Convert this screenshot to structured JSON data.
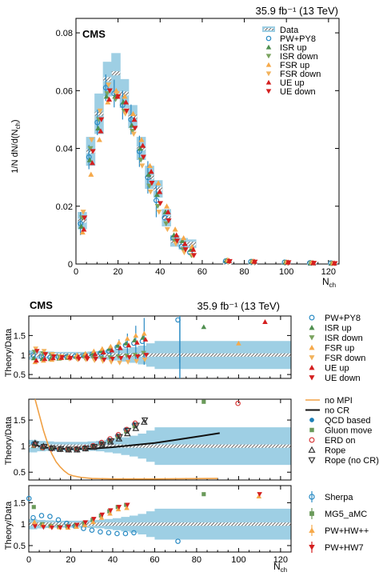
{
  "colors": {
    "band": "#9ecfe4",
    "data_line": "#2f6f96",
    "pw_py8": "#2a8bc4",
    "isr_up": "#4f8f4f",
    "isr_down": "#7aa35f",
    "fsr_up": "#f6a94a",
    "fsr_down": "#f2b25c",
    "ue_up": "#d41f1f",
    "ue_down": "#d41f1f",
    "no_mpi": "#f0a044",
    "no_cr": "#111111",
    "qcd": "#1e7fb8",
    "gluon": "#6a9a5a",
    "erd": "#d83a3a",
    "rope": "#333333",
    "sherpa": "#2a8bc4",
    "mg5": "#6a9a5a",
    "pwhwpp": "#f6a94a",
    "pwhw7": "#d41f1f"
  },
  "chart_data": [
    {
      "type": "line",
      "name": "main",
      "cms_label": "CMS",
      "lumi_label": "35.9 fb⁻¹ (13 TeV)",
      "xlabel": "N",
      "xlabel_sub": "ch",
      "ylabel": "1/N dN/d(N",
      "ylabel_sub": "ch",
      "ylabel_close": ")",
      "xlim": [
        0,
        125
      ],
      "ylim": [
        0,
        0.085
      ],
      "xticks": [
        "0",
        "20",
        "40",
        "60",
        "80",
        "100",
        "120"
      ],
      "yticks": [
        "0",
        "0.02",
        "0.04",
        "0.06",
        "0.08"
      ],
      "x": [
        3,
        7,
        11,
        15,
        19,
        23,
        27,
        31,
        35,
        39,
        43,
        47,
        51,
        55,
        72,
        84,
        100,
        112,
        122
      ],
      "data": [
        0.015,
        0.039,
        0.052,
        0.064,
        0.066,
        0.059,
        0.051,
        0.04,
        0.03,
        0.026,
        0.016,
        0.008,
        0.007,
        0.007,
        0.0005,
        0.0003,
        0.0002,
        0.0001,
        0.0001
      ],
      "band_halfwidth": [
        0.003,
        0.005,
        0.007,
        0.006,
        0.007,
        0.005,
        0.004,
        0.004,
        0.004,
        0.003,
        0.003,
        0.002,
        0.002,
        0.0015,
        0.0005,
        0.0004,
        0.0003,
        0.0002,
        0.0002
      ],
      "series": [
        {
          "name": "PW+PY8",
          "marker": "circle-open",
          "color_key": "pw_py8",
          "values": [
            0.014,
            0.037,
            0.049,
            0.061,
            0.059,
            0.055,
            0.05,
            0.039,
            0.03,
            0.022,
            0.016,
            0.009,
            0.006,
            0.004,
            0.001,
            0.0008,
            0.0006,
            0.0004,
            0.0003
          ]
        },
        {
          "name": "ISR up",
          "marker": "tri-up",
          "color_key": "isr_up",
          "values": [
            0.013,
            0.036,
            0.047,
            0.058,
            0.058,
            0.056,
            0.048,
            0.04,
            0.031,
            0.024,
            0.018,
            0.01,
            0.008,
            0.005,
            0.0012,
            0.0009,
            0.0006,
            0.0004,
            0.0003
          ]
        },
        {
          "name": "ISR down",
          "marker": "tri-down",
          "color_key": "isr_down",
          "values": [
            0.016,
            0.04,
            0.05,
            0.059,
            0.057,
            0.053,
            0.046,
            0.036,
            0.027,
            0.02,
            0.014,
            0.008,
            0.005,
            0.003,
            0.0009,
            0.0007,
            0.0005,
            0.0003,
            0.0002
          ]
        },
        {
          "name": "FSR up",
          "marker": "tri-up",
          "color_key": "fsr_up",
          "values": [
            0.011,
            0.031,
            0.043,
            0.056,
            0.06,
            0.058,
            0.052,
            0.043,
            0.034,
            0.028,
            0.02,
            0.012,
            0.009,
            0.006,
            0.0014,
            0.001,
            0.0007,
            0.0005,
            0.0003
          ]
        },
        {
          "name": "FSR down",
          "marker": "tri-down",
          "color_key": "fsr_down",
          "values": [
            0.018,
            0.043,
            0.053,
            0.062,
            0.059,
            0.052,
            0.045,
            0.034,
            0.025,
            0.018,
            0.012,
            0.007,
            0.004,
            0.003,
            0.0008,
            0.0006,
            0.0004,
            0.0003,
            0.0002
          ]
        },
        {
          "name": "UE up",
          "marker": "tri-up",
          "color_key": "ue_up",
          "values": [
            0.012,
            0.035,
            0.046,
            0.057,
            0.058,
            0.056,
            0.05,
            0.041,
            0.032,
            0.025,
            0.018,
            0.01,
            0.007,
            0.005,
            0.0011,
            0.0009,
            0.0006,
            0.0004,
            0.0003
          ]
        },
        {
          "name": "UE down",
          "marker": "tri-down",
          "color_key": "ue_down",
          "values": [
            0.016,
            0.039,
            0.05,
            0.06,
            0.058,
            0.053,
            0.047,
            0.037,
            0.028,
            0.021,
            0.015,
            0.008,
            0.005,
            0.003,
            0.0009,
            0.0007,
            0.0005,
            0.0003,
            0.0002
          ]
        }
      ]
    },
    {
      "type": "scatter",
      "name": "ratio1",
      "cms_label": "CMS",
      "lumi_label": "35.9 fb⁻¹ (13 TeV)",
      "ylabel": "Theory/Data",
      "xlim": [
        0,
        125
      ],
      "ylim": [
        0.4,
        2.0
      ],
      "yticks": [
        "0.5",
        "1",
        "1.5"
      ],
      "ytick_values": [
        0.5,
        1.0,
        1.5
      ],
      "x": [
        3,
        7,
        11,
        15,
        19,
        23,
        27,
        31,
        35,
        39,
        43,
        47,
        51,
        55,
        72,
        84,
        100,
        112
      ],
      "band_x": [
        0,
        4,
        8,
        12,
        16,
        20,
        24,
        28,
        32,
        36,
        40,
        44,
        48,
        52,
        56,
        60,
        125
      ],
      "band_halfwidth": [
        0.12,
        0.1,
        0.09,
        0.08,
        0.08,
        0.08,
        0.08,
        0.09,
        0.1,
        0.12,
        0.14,
        0.17,
        0.2,
        0.24,
        0.3,
        0.36,
        0.36
      ],
      "errors": [
        0.12,
        0.1,
        0.08,
        0.07,
        0.06,
        0.06,
        0.07,
        0.08,
        0.1,
        0.14,
        0.2,
        0.3,
        0.45,
        0.6,
        1.1,
        0.5,
        0.5,
        0.5
      ],
      "series": [
        {
          "name": "PW+PY8",
          "marker": "circle-open",
          "color_key": "pw_py8",
          "values": [
            1.0,
            0.95,
            0.94,
            0.95,
            0.96,
            0.97,
            0.98,
            1.02,
            1.05,
            1.1,
            1.2,
            1.25,
            1.3,
            1.35,
            1.9,
            null,
            null,
            null
          ]
        },
        {
          "name": "ISR up",
          "marker": "tri-up",
          "color_key": "isr_up",
          "values": [
            0.92,
            0.9,
            0.9,
            0.91,
            0.93,
            0.96,
            1.0,
            1.04,
            1.1,
            1.16,
            1.24,
            1.3,
            1.38,
            1.45,
            null,
            1.72,
            null,
            null
          ]
        },
        {
          "name": "ISR down",
          "marker": "tri-down",
          "color_key": "isr_down",
          "values": [
            1.08,
            1.04,
            1.0,
            0.96,
            0.94,
            0.92,
            0.92,
            0.92,
            0.92,
            0.94,
            0.96,
            0.98,
            1.0,
            1.05,
            null,
            null,
            null,
            null
          ]
        },
        {
          "name": "FSR up",
          "marker": "tri-up",
          "color_key": "fsr_up",
          "values": [
            0.82,
            0.86,
            0.88,
            0.92,
            0.96,
            1.0,
            1.04,
            1.1,
            1.16,
            1.22,
            1.32,
            1.42,
            1.5,
            1.55,
            null,
            null,
            1.3,
            null
          ]
        },
        {
          "name": "FSR down",
          "marker": "tri-down",
          "color_key": "fsr_down",
          "values": [
            1.16,
            1.1,
            1.02,
            0.96,
            0.9,
            0.88,
            0.88,
            0.86,
            0.84,
            0.82,
            0.8,
            0.82,
            0.84,
            0.88,
            null,
            null,
            null,
            null
          ]
        },
        {
          "name": "UE up",
          "marker": "tri-up",
          "color_key": "ue_up",
          "values": [
            0.86,
            0.9,
            0.92,
            0.93,
            0.94,
            0.96,
            0.98,
            1.02,
            1.07,
            1.12,
            1.18,
            1.25,
            1.32,
            1.4,
            null,
            null,
            null,
            1.85
          ]
        },
        {
          "name": "UE down",
          "marker": "tri-down",
          "color_key": "ue_down",
          "values": [
            1.1,
            1.02,
            0.96,
            0.94,
            0.92,
            0.9,
            0.9,
            0.9,
            0.88,
            0.9,
            0.92,
            0.94,
            0.96,
            1.0,
            null,
            null,
            null,
            null
          ]
        }
      ]
    },
    {
      "type": "scatter",
      "name": "ratio2",
      "ylabel": "Theory/Data",
      "xlim": [
        0,
        125
      ],
      "ylim": [
        0.35,
        1.9
      ],
      "yticks": [
        "0.5",
        "1",
        "1.5"
      ],
      "ytick_values": [
        0.5,
        1.0,
        1.5
      ],
      "x": [
        3,
        7,
        11,
        15,
        19,
        23,
        27,
        31,
        35,
        39,
        43,
        47,
        51,
        55,
        72,
        84,
        100
      ],
      "band_x": [
        0,
        4,
        8,
        12,
        16,
        20,
        24,
        28,
        32,
        36,
        40,
        44,
        48,
        52,
        56,
        60,
        125
      ],
      "band_halfwidth": [
        0.12,
        0.1,
        0.09,
        0.08,
        0.08,
        0.08,
        0.08,
        0.09,
        0.1,
        0.12,
        0.14,
        0.17,
        0.2,
        0.24,
        0.3,
        0.36,
        0.36
      ],
      "lines": [
        {
          "name": "no MPI",
          "color_key": "no_mpi",
          "x": [
            3,
            5,
            7,
            9,
            11,
            13,
            15,
            17,
            19,
            21,
            25,
            30,
            40,
            60,
            90
          ],
          "values": [
            1.9,
            1.6,
            1.3,
            1.05,
            0.85,
            0.7,
            0.6,
            0.52,
            0.46,
            0.43,
            0.4,
            0.38,
            0.37,
            0.37,
            0.38
          ]
        },
        {
          "name": "no CR",
          "color_key": "no_cr",
          "x": [
            3,
            7,
            11,
            15,
            20,
            30,
            40,
            50,
            60,
            70,
            80,
            91
          ],
          "values": [
            1.02,
            0.98,
            0.96,
            0.95,
            0.94,
            0.95,
            0.98,
            1.02,
            1.06,
            1.12,
            1.18,
            1.25
          ]
        }
      ],
      "series": [
        {
          "name": "QCD based",
          "marker": "circle-filled",
          "color_key": "qcd",
          "values": [
            1.05,
            0.98,
            0.95,
            0.93,
            0.93,
            0.94,
            0.97,
            1.0,
            1.06,
            1.12,
            1.2,
            1.32,
            1.42,
            null,
            null,
            null,
            null
          ]
        },
        {
          "name": "Gluon move",
          "marker": "square-filled",
          "color_key": "gluon",
          "values": [
            1.0,
            0.96,
            0.95,
            0.94,
            0.94,
            0.95,
            0.97,
            1.0,
            1.05,
            1.1,
            1.18,
            1.28,
            1.38,
            null,
            null,
            1.85,
            null
          ]
        },
        {
          "name": "ERD on",
          "marker": "circle-open",
          "color_key": "erd",
          "values": [
            1.02,
            0.97,
            0.95,
            0.94,
            0.94,
            0.95,
            0.97,
            1.01,
            1.07,
            1.14,
            1.22,
            1.32,
            1.44,
            null,
            null,
            null,
            1.82
          ]
        },
        {
          "name": "Rope",
          "marker": "tri-up-open",
          "color_key": "rope",
          "values": [
            1.06,
            1.0,
            0.96,
            0.94,
            0.93,
            0.93,
            0.95,
            0.98,
            1.02,
            1.08,
            1.14,
            1.24,
            1.34,
            1.46,
            null,
            null,
            null
          ]
        },
        {
          "name": "Rope (no CR)",
          "marker": "tri-down-open",
          "color_key": "rope",
          "values": [
            1.04,
            0.99,
            0.96,
            0.95,
            0.94,
            0.94,
            0.96,
            0.99,
            1.03,
            1.1,
            1.18,
            1.3,
            1.4,
            1.5,
            null,
            null,
            null
          ]
        }
      ]
    },
    {
      "type": "scatter",
      "name": "ratio3",
      "ylabel": "Theory/Data",
      "xlabel": "N",
      "xlabel_sub": "ch",
      "xlim": [
        0,
        125
      ],
      "ylim": [
        0.35,
        1.9
      ],
      "xticks": [
        "0",
        "20",
        "40",
        "60",
        "80",
        "100",
        "120"
      ],
      "yticks": [
        "0.5",
        "1",
        "1.5"
      ],
      "ytick_values": [
        0.5,
        1.0,
        1.5
      ],
      "x": [
        1,
        3,
        7,
        11,
        15,
        19,
        23,
        27,
        31,
        35,
        39,
        43,
        47,
        51,
        55,
        72,
        84,
        110
      ],
      "band_x": [
        0,
        4,
        8,
        12,
        16,
        20,
        24,
        28,
        32,
        36,
        40,
        44,
        48,
        52,
        56,
        60,
        125
      ],
      "band_halfwidth": [
        0.12,
        0.1,
        0.09,
        0.08,
        0.08,
        0.08,
        0.08,
        0.09,
        0.1,
        0.12,
        0.14,
        0.17,
        0.2,
        0.24,
        0.3,
        0.36,
        0.36
      ],
      "series": [
        {
          "name": "Sherpa",
          "marker": "circle-open",
          "color_key": "sherpa",
          "values": [
            1.6,
            1.15,
            1.2,
            1.18,
            1.1,
            1.02,
            0.95,
            0.9,
            0.86,
            0.82,
            0.8,
            0.78,
            0.78,
            0.8,
            null,
            0.6,
            null,
            null
          ]
        },
        {
          "name": "MG5_aMC",
          "marker": "square-filled",
          "color_key": "mg5",
          "values": [
            null,
            1.4,
            1.0,
            0.96,
            0.94,
            0.95,
            0.98,
            1.02,
            1.1,
            1.2,
            1.3,
            1.4,
            1.45,
            null,
            null,
            null,
            1.7,
            null
          ]
        },
        {
          "name": "PW+HW++",
          "marker": "tri-up",
          "color_key": "pwhwpp",
          "values": [
            null,
            1.05,
            0.98,
            0.95,
            0.93,
            0.92,
            0.94,
            0.98,
            1.05,
            1.15,
            1.25,
            1.35,
            1.38,
            null,
            null,
            null,
            null,
            1.65
          ]
        },
        {
          "name": "PW+HW7",
          "marker": "tri-down",
          "color_key": "pwhw7",
          "values": [
            null,
            0.95,
            0.93,
            0.92,
            0.92,
            0.94,
            0.98,
            1.04,
            1.12,
            1.22,
            1.32,
            1.4,
            1.45,
            null,
            null,
            null,
            null,
            1.7
          ]
        }
      ]
    }
  ]
}
